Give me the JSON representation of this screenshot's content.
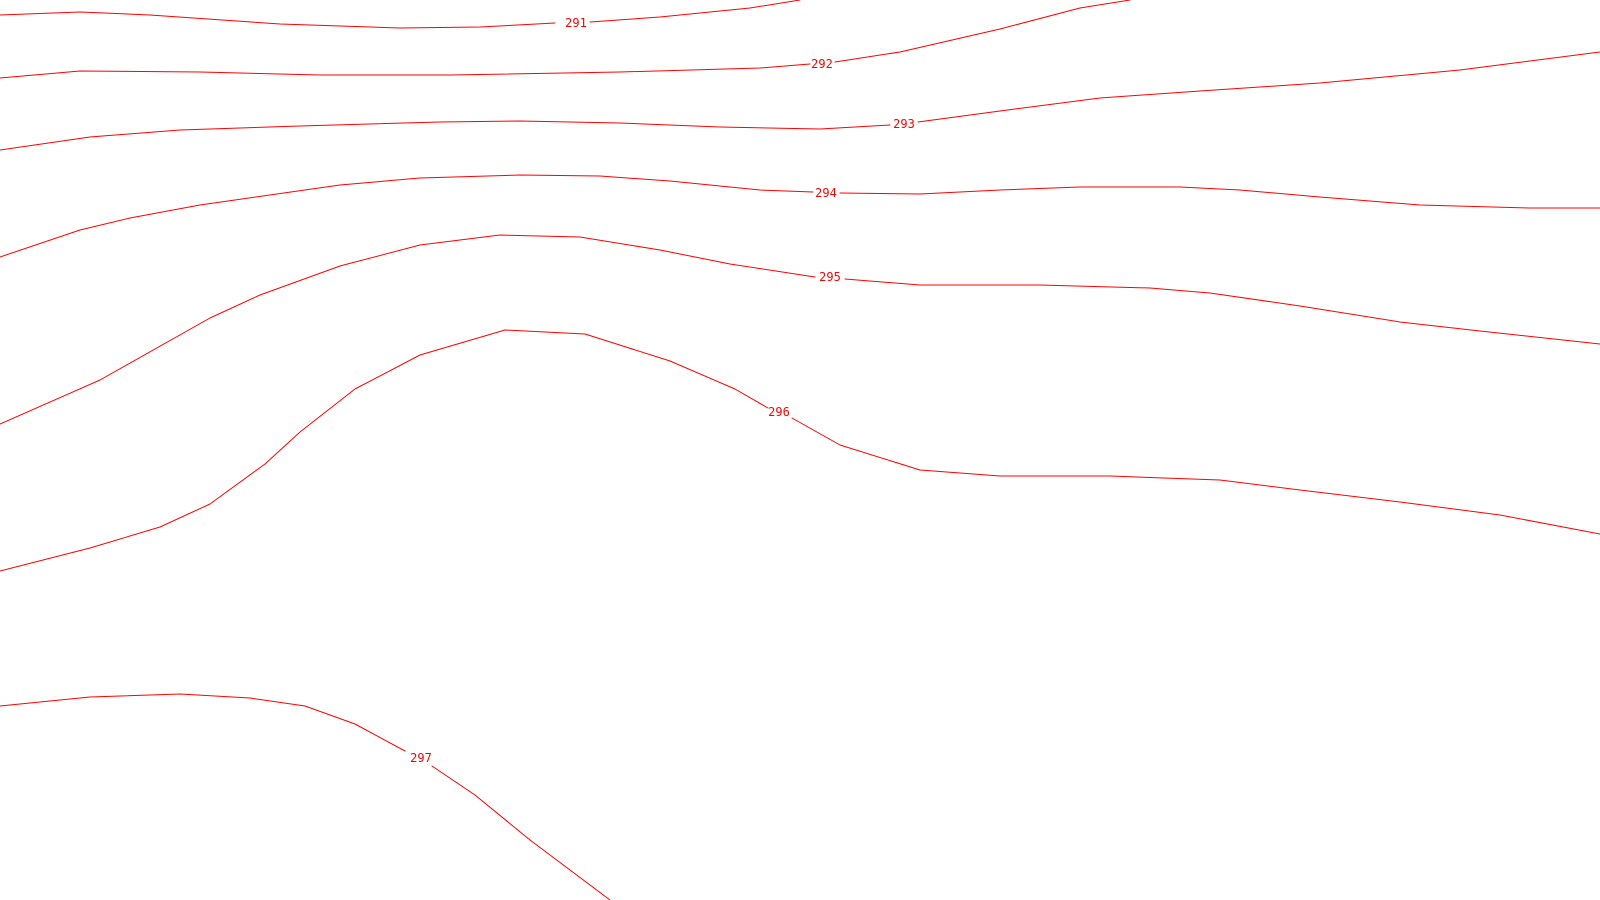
{
  "map": {
    "line_color": "#ff0000",
    "background_color": "#ffffff",
    "contours": [
      {
        "level": "291"
      },
      {
        "level": "292"
      },
      {
        "level": "293"
      },
      {
        "level": "294"
      },
      {
        "level": "295"
      },
      {
        "level": "296"
      },
      {
        "level": "297"
      }
    ]
  }
}
